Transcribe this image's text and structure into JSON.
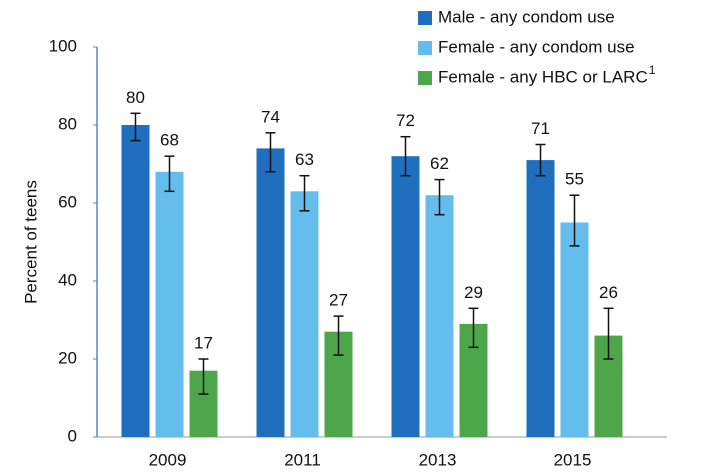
{
  "chart_data": {
    "type": "bar",
    "y_label": "Percent of teens",
    "categories": [
      "2009",
      "2011",
      "2013",
      "2015"
    ],
    "series": [
      {
        "name": "Male - any condom use",
        "color": "#1f6fbe",
        "values": [
          80,
          74,
          72,
          71
        ],
        "ci_low": [
          76,
          68,
          67,
          67
        ],
        "ci_high": [
          83,
          78,
          77,
          75
        ]
      },
      {
        "name": "Female - any condom use",
        "color": "#64bdec",
        "values": [
          68,
          63,
          62,
          55
        ],
        "ci_low": [
          63,
          58,
          57,
          49
        ],
        "ci_high": [
          72,
          67,
          66,
          62
        ]
      },
      {
        "name": "Female - any HBC or LARC",
        "superscript": "1",
        "color": "#4ea64b",
        "values": [
          17,
          27,
          29,
          26
        ],
        "ci_low": [
          11,
          21,
          23,
          20
        ],
        "ci_high": [
          20,
          31,
          33,
          33
        ]
      }
    ],
    "ylim": [
      0,
      100
    ],
    "yticks": [
      0,
      20,
      40,
      60,
      80,
      100
    ],
    "grid": false,
    "legend": "top-right"
  }
}
